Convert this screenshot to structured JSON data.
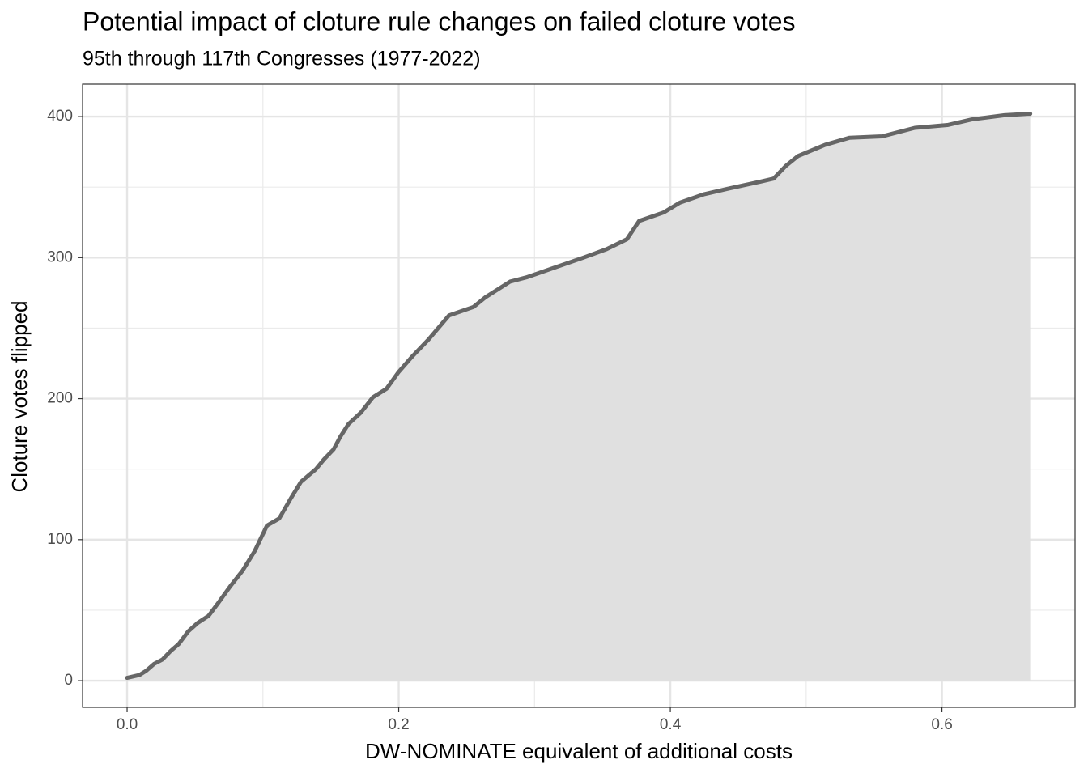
{
  "chart_data": {
    "type": "area",
    "title": "Potential impact of cloture rule changes on failed cloture votes",
    "subtitle": "95th through 117th Congresses (1977-2022)",
    "x_label": "DW-NOMINATE equivalent of additional costs",
    "y_label": "Cloture votes flipped",
    "x": [
      0,
      0.009,
      0.014,
      0.02,
      0.026,
      0.032,
      0.038,
      0.045,
      0.052,
      0.06,
      0.067,
      0.076,
      0.085,
      0.094,
      0.103,
      0.112,
      0.121,
      0.128,
      0.139,
      0.145,
      0.152,
      0.157,
      0.163,
      0.172,
      0.181,
      0.191,
      0.2,
      0.21,
      0.222,
      0.237,
      0.255,
      0.264,
      0.282,
      0.294,
      0.312,
      0.336,
      0.353,
      0.368,
      0.377,
      0.395,
      0.407,
      0.425,
      0.443,
      0.467,
      0.476,
      0.485,
      0.494,
      0.514,
      0.532,
      0.556,
      0.58,
      0.604,
      0.622,
      0.646,
      0.665
    ],
    "series": [
      {
        "name": "Cloture votes flipped",
        "color": "#666666",
        "fill": "#e0e0e0",
        "values": [
          2,
          4,
          7,
          12,
          15,
          21,
          26,
          35,
          41,
          46,
          55,
          67,
          78,
          92,
          110,
          115,
          130,
          141,
          150,
          157,
          164,
          173,
          182,
          190,
          201,
          207,
          219,
          230,
          242,
          259,
          265,
          272,
          283,
          286,
          292,
          300,
          306,
          313,
          326,
          332,
          339,
          345,
          349,
          354,
          356,
          365,
          372,
          380,
          385,
          386,
          392,
          394,
          398,
          401,
          402
        ]
      }
    ],
    "xlim": [
      -0.0328,
      0.698
    ],
    "ylim": [
      -18.9,
      423
    ],
    "xticks": [
      {
        "value": 0,
        "label": "0.0"
      },
      0.2,
      0.4,
      0.6
    ],
    "yticks": [
      0,
      100,
      200,
      300,
      400
    ],
    "x_minor_ticks": [
      0.1,
      0.3,
      0.5
    ],
    "y_minor_ticks": [
      50,
      150,
      250,
      350
    ],
    "grid": true
  }
}
